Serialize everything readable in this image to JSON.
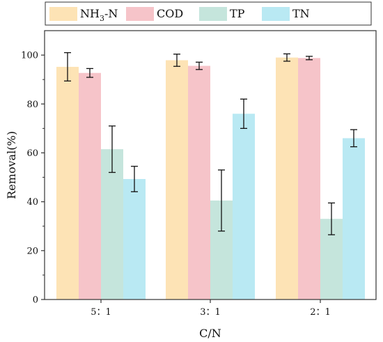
{
  "chart_data": {
    "type": "bar",
    "categories": [
      "5：1",
      "3：1",
      "2：1"
    ],
    "series": [
      {
        "name": "NH3-N",
        "label_main": "NH",
        "label_sub": "3",
        "label_tail": "-N",
        "color": "#fde3b5",
        "values": [
          95.2,
          97.9,
          99.0
        ],
        "errors": [
          5.8,
          2.5,
          1.5
        ]
      },
      {
        "name": "COD",
        "color": "#f6c4c9",
        "values": [
          92.7,
          95.6,
          98.8
        ],
        "errors": [
          1.8,
          1.5,
          0.7
        ]
      },
      {
        "name": "TP",
        "color": "#c5e5dc",
        "values": [
          61.5,
          40.5,
          33.0
        ],
        "errors": [
          9.5,
          12.5,
          6.5
        ]
      },
      {
        "name": "TN",
        "color": "#b9e9f3",
        "values": [
          49.3,
          76.0,
          66.0
        ],
        "errors": [
          5.2,
          6.0,
          3.5
        ]
      }
    ],
    "xlabel": "C/N",
    "ylabel": "Removal(%)",
    "ylim": [
      0,
      110
    ],
    "yticks": [
      0,
      20,
      40,
      60,
      80,
      100
    ],
    "ytick_labels": [
      "0",
      "20",
      "40",
      "60",
      "80",
      "100"
    ],
    "grid": false,
    "legend": "top"
  }
}
